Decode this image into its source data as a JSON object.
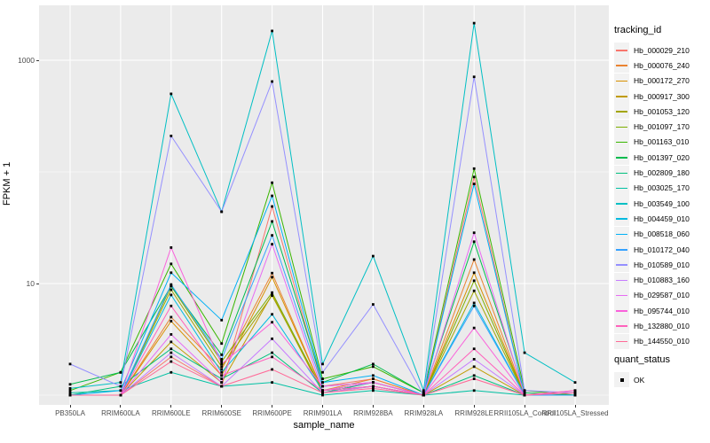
{
  "figure": {
    "panel_background": "#EBEBEB",
    "grid_color": "#FFFFFF",
    "tick_text_color": "#4D4D4D",
    "point_color": "#000000"
  },
  "chart_data": {
    "type": "line",
    "xlabel": "sample_name",
    "ylabel": "FPKM + 1",
    "y_scale": "log10",
    "ylim": [
      0.9,
      2400
    ],
    "grid": true,
    "y_ticks": [
      {
        "label": "10",
        "value": 10
      },
      {
        "label": "1000",
        "value": 1000
      }
    ],
    "y_minor": [
      1,
      100
    ],
    "categories": [
      "PB350LA",
      "RRIM600LA",
      "RRIM600LE",
      "RRIM600SE",
      "RRIM600PE",
      "RRIM901LA",
      "RRIM928BA",
      "RRIM928LA",
      "RRIM928LE",
      "RRII105LA_Control",
      "RRII105LA_Stressed"
    ],
    "marker": "black-square",
    "legend": {
      "title": "tracking_id",
      "position": "right"
    },
    "legend2": {
      "title": "quant_status",
      "items": [
        {
          "label": "OK",
          "marker": "black-square"
        }
      ]
    },
    "series": [
      {
        "name": "Hb_000029_210",
        "color": "#F8766D",
        "values": [
          1,
          1,
          2.2,
          1.2,
          49,
          1.2,
          1.4,
          1,
          90,
          1,
          1
        ]
      },
      {
        "name": "Hb_000076_240",
        "color": "#EA8331",
        "values": [
          1,
          1,
          5.0,
          1.7,
          12.4,
          1.1,
          1.4,
          1,
          16.4,
          1,
          1
        ]
      },
      {
        "name": "Hb_000172_270",
        "color": "#D89000",
        "values": [
          1,
          1,
          4.6,
          1.5,
          11.4,
          1.1,
          1.3,
          1,
          12.5,
          1,
          1
        ]
      },
      {
        "name": "Hb_000917_300",
        "color": "#C09B00",
        "values": [
          1,
          1,
          3.0,
          1.3,
          8.0,
          1.05,
          1.2,
          1,
          1.8,
          1,
          1
        ]
      },
      {
        "name": "Hb_001053_120",
        "color": "#A3A500",
        "values": [
          1,
          1,
          8.8,
          1.8,
          7.8,
          1.1,
          1.2,
          1,
          8.6,
          1,
          1
        ]
      },
      {
        "name": "Hb_001097_170",
        "color": "#7CAE00",
        "values": [
          1,
          1,
          9.5,
          2.0,
          8.3,
          1.1,
          1.3,
          1,
          10.6,
          1,
          1
        ]
      },
      {
        "name": "Hb_001163_010",
        "color": "#39B600",
        "values": [
          1.1,
          1.6,
          15,
          2.9,
          80,
          1.4,
          1.8,
          1.05,
          107,
          1.1,
          1
        ]
      },
      {
        "name": "Hb_001397_020",
        "color": "#00BB4E",
        "values": [
          1.25,
          1.6,
          9.5,
          2.3,
          36,
          1.3,
          1.9,
          1.05,
          23.7,
          1.05,
          1
        ]
      },
      {
        "name": "Hb_002809_180",
        "color": "#00BF7D",
        "values": [
          1,
          1.2,
          2.6,
          1.4,
          2.4,
          1.05,
          1.3,
          1,
          1.5,
          1,
          1
        ]
      },
      {
        "name": "Hb_003025_170",
        "color": "#00C1A3",
        "values": [
          1.05,
          1.1,
          1.6,
          1.2,
          1.3,
          1,
          1.1,
          1,
          1.1,
          1,
          1.05
        ]
      },
      {
        "name": "Hb_003549_100",
        "color": "#00BFC4",
        "values": [
          1.15,
          1.3,
          500,
          44,
          1830,
          1.9,
          17.6,
          1.1,
          2150,
          2.4,
          1.3
        ]
      },
      {
        "name": "Hb_004459_010",
        "color": "#00BAE0",
        "values": [
          1,
          1,
          7.9,
          1.6,
          5.3,
          1.1,
          1.2,
          1,
          6.7,
          1,
          1
        ]
      },
      {
        "name": "Hb_008518_060",
        "color": "#00B0F6",
        "values": [
          1,
          1.1,
          12.5,
          4.7,
          61,
          1.3,
          1.5,
          1,
          78,
          1,
          1
        ]
      },
      {
        "name": "Hb_010172_040",
        "color": "#35A2FF",
        "values": [
          1,
          1,
          9.8,
          2.1,
          27,
          1.2,
          1.3,
          1,
          6.3,
          1,
          1
        ]
      },
      {
        "name": "Hb_010589_010",
        "color": "#9590FF",
        "values": [
          1.9,
          1.2,
          210,
          44,
          645,
          1.6,
          6.5,
          1,
          710,
          1.1,
          1.05
        ]
      },
      {
        "name": "Hb_010883_160",
        "color": "#C77CFF",
        "values": [
          1,
          1,
          2.4,
          1.2,
          3.2,
          1.05,
          1.2,
          1,
          2.1,
          1,
          1.05
        ]
      },
      {
        "name": "Hb_029587_010",
        "color": "#E76BF3",
        "values": [
          1,
          1,
          3.5,
          1.3,
          22.5,
          1.1,
          1.3,
          1,
          28.5,
          1,
          1.05
        ]
      },
      {
        "name": "Hb_095744_010",
        "color": "#FA62DB",
        "values": [
          1,
          1,
          21,
          1.9,
          4.5,
          1.2,
          1.3,
          1,
          4.0,
          1,
          1.1
        ]
      },
      {
        "name": "Hb_132880_010",
        "color": "#FF62BC",
        "values": [
          1,
          1,
          6.3,
          1.5,
          2.2,
          1.1,
          1.2,
          1,
          2.6,
          1,
          1.1
        ]
      },
      {
        "name": "Hb_144550_010",
        "color": "#FF6A98",
        "values": [
          1,
          1,
          2.0,
          1.2,
          1.7,
          1.05,
          1.15,
          1,
          1.4,
          1,
          1.05
        ]
      }
    ]
  }
}
